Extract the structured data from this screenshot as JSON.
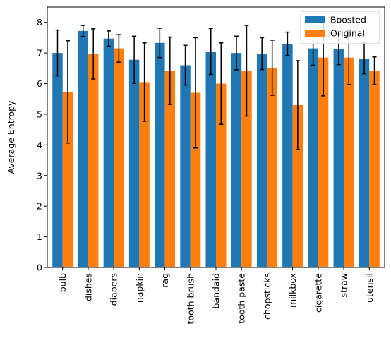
{
  "chart_data": {
    "type": "bar",
    "title": "",
    "xlabel": "",
    "ylabel": "Average Entropy",
    "ylim": [
      0,
      8.5
    ],
    "yticks": [
      0,
      1,
      2,
      3,
      4,
      5,
      6,
      7,
      8
    ],
    "categories": [
      "bulb",
      "dishes",
      "diapers",
      "napkin",
      "rag",
      "tooth brush",
      "bandaid",
      "tooth paste",
      "chopsticks",
      "milkbox",
      "cigarette",
      "straw",
      "utensil"
    ],
    "series": [
      {
        "name": "Boosted",
        "color": "#1f77b4",
        "values": [
          7.0,
          7.72,
          7.47,
          6.78,
          7.33,
          6.6,
          7.05,
          7.0,
          6.98,
          7.3,
          7.15,
          7.12,
          6.82
        ],
        "errors": [
          0.75,
          0.18,
          0.25,
          0.77,
          0.48,
          0.65,
          0.75,
          0.55,
          0.52,
          0.38,
          0.55,
          0.5,
          0.5
        ]
      },
      {
        "name": "Original",
        "color": "#ff7f0e",
        "values": [
          5.73,
          6.97,
          7.15,
          6.05,
          6.42,
          5.7,
          6.0,
          6.42,
          6.52,
          5.3,
          6.85,
          6.85,
          6.42
        ],
        "errors": [
          1.67,
          0.82,
          0.45,
          1.28,
          1.1,
          1.8,
          1.33,
          1.48,
          0.9,
          1.45,
          1.25,
          0.88,
          0.45
        ]
      }
    ],
    "legend_position": "upper-right",
    "grid": false
  }
}
